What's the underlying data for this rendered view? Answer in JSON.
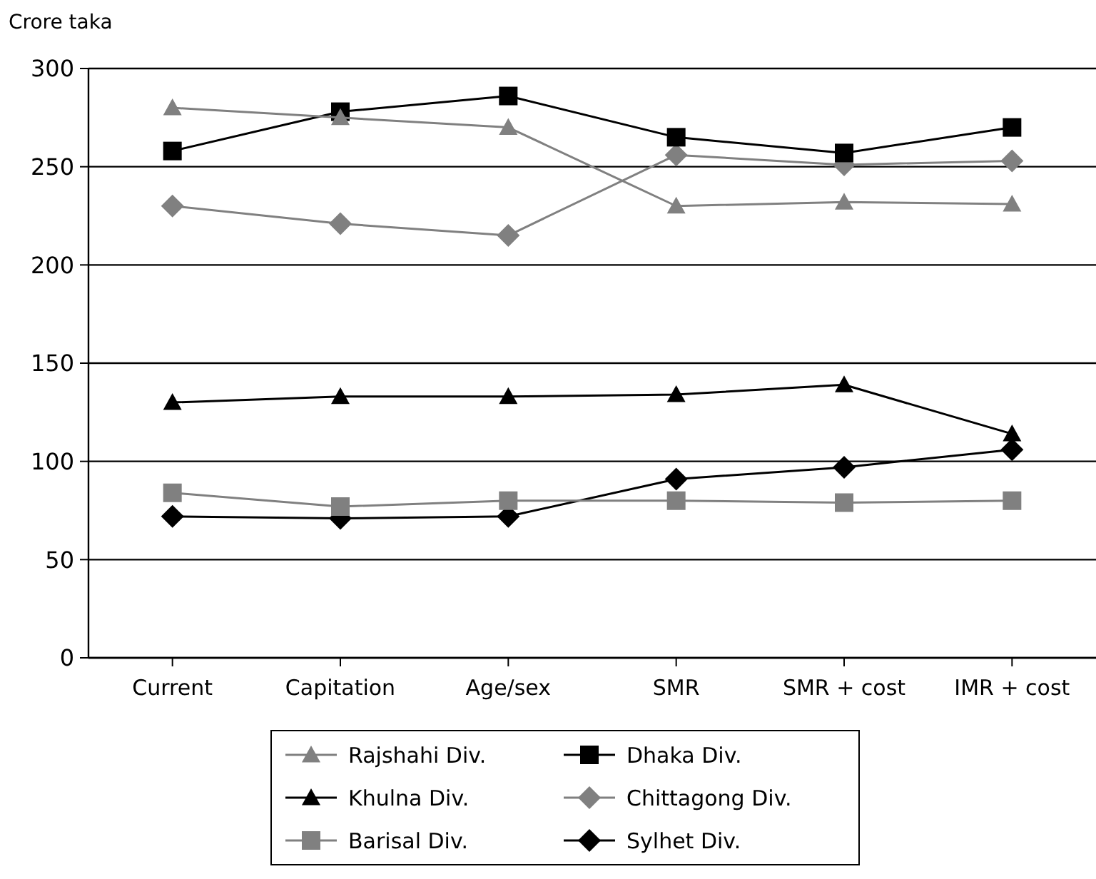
{
  "chart_data": {
    "type": "line",
    "ylabel": "Crore taka",
    "categories": [
      "Current",
      "Capitation",
      "Age/sex",
      "SMR",
      "SMR + cost",
      "IMR + cost"
    ],
    "ylim": [
      0,
      300
    ],
    "yticks": [
      0,
      50,
      100,
      150,
      200,
      250,
      300
    ],
    "grid": "y",
    "legend": "bottom",
    "series": [
      {
        "name": "Rajshahi Div.",
        "color": "#808080",
        "marker": "triangle",
        "values": [
          280,
          275,
          270,
          230,
          232,
          231
        ]
      },
      {
        "name": "Dhaka Div.",
        "color": "#000000",
        "marker": "square",
        "values": [
          258,
          278,
          286,
          265,
          257,
          270
        ]
      },
      {
        "name": "Khulna Div.",
        "color": "#000000",
        "marker": "triangle",
        "values": [
          130,
          133,
          133,
          134,
          139,
          114
        ]
      },
      {
        "name": "Chittagong Div.",
        "color": "#808080",
        "marker": "diamond",
        "values": [
          230,
          221,
          215,
          256,
          251,
          253
        ]
      },
      {
        "name": "Barisal Div.",
        "color": "#808080",
        "marker": "square",
        "values": [
          84,
          77,
          80,
          80,
          79,
          80
        ]
      },
      {
        "name": "Sylhet Div.",
        "color": "#000000",
        "marker": "diamond",
        "values": [
          72,
          71,
          72,
          91,
          97,
          106
        ]
      }
    ]
  }
}
